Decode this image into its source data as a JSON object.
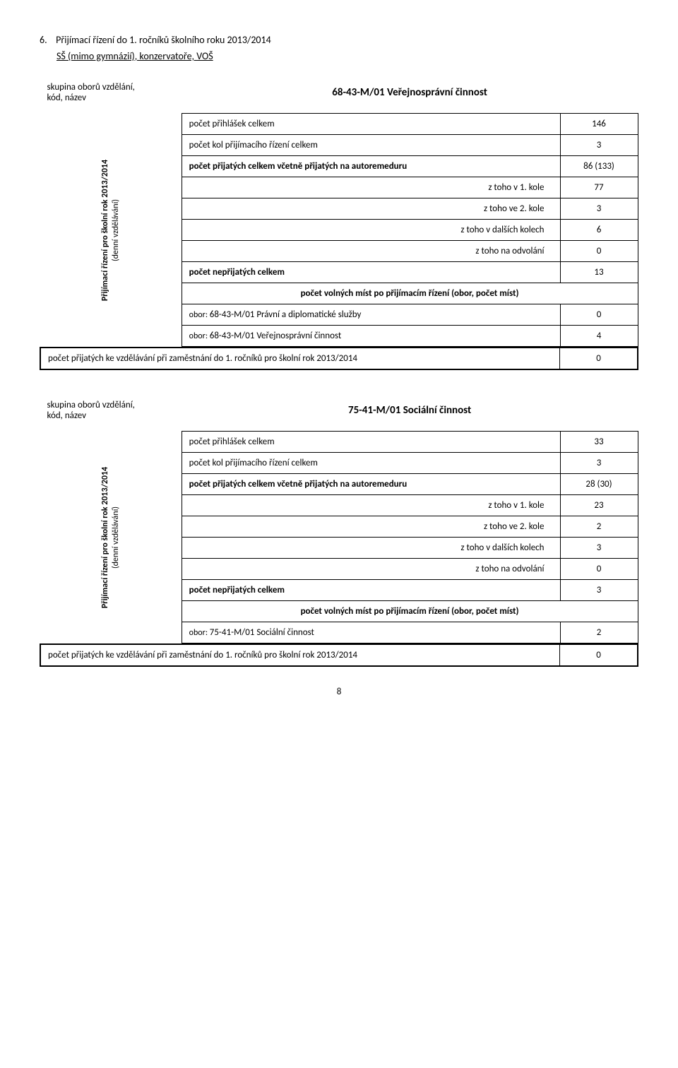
{
  "section": {
    "number": "6.",
    "title": "Přijímací řízení do 1. ročníků školního roku 2013/2014",
    "subtitle": "SŠ (mimo gymnázií), konzervatoře, VOŠ"
  },
  "common_labels": {
    "group_label": "skupina oborů vzdělání,\nkód, název",
    "side_line1": "Přijímací řízení pro školní rok 2013/2014",
    "side_line2": "(denní vzdělávání)",
    "applications": "počet přihlášek celkem",
    "rounds": "počet kol přijímacího řízení celkem",
    "accepted_total": "počet přijatých celkem včetně přijatých na autoremeduru",
    "round1": "z toho v 1. kole",
    "round2": "z toho ve 2. kole",
    "other_rounds": "z toho v dalších kolech",
    "appeal": "z toho na odvolání",
    "rejected": "počet nepřijatých celkem",
    "free_spots": "počet volných míst po přijímacím řízení (obor, počet míst)",
    "obor_prefix": "obor: ",
    "footer_label": "počet přijatých ke vzdělávání při zaměstnání do 1. ročníků pro školní rok 2013/2014"
  },
  "tables": [
    {
      "header_program": "68-43-M/01 Veřejnosprávní činnost",
      "applications": "146",
      "rounds": "3",
      "accepted_total": "86 (133)",
      "round1": "77",
      "round2": "3",
      "other_rounds": "6",
      "appeal": "0",
      "rejected": "13",
      "obory": [
        {
          "name": "68-43-M/01 Právní a diplomatické služby",
          "val": "0"
        },
        {
          "name": "68-43-M/01 Veřejnosprávní činnost",
          "val": "4"
        }
      ],
      "footer_val": "0"
    },
    {
      "header_program": "75-41-M/01 Sociální činnost",
      "applications": "33",
      "rounds": "3",
      "accepted_total": "28 (30)",
      "round1": "23",
      "round2": "2",
      "other_rounds": "3",
      "appeal": "0",
      "rejected": "3",
      "obory": [
        {
          "name": "75-41-M/01 Sociální činnost",
          "val": "2"
        }
      ],
      "footer_val": "0"
    }
  ],
  "page_number": "8"
}
